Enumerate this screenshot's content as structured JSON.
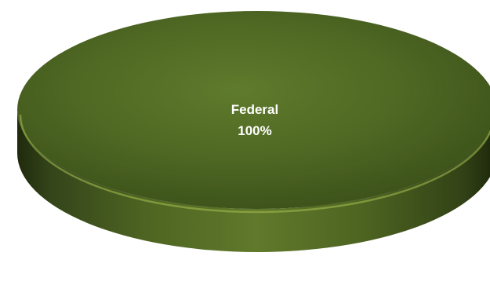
{
  "chart_data": {
    "type": "pie",
    "title": "",
    "slices": [
      {
        "label": "Federal",
        "value": 100,
        "value_label": "100%",
        "color": "#556b22"
      }
    ],
    "legend": "none",
    "style": "3d"
  }
}
